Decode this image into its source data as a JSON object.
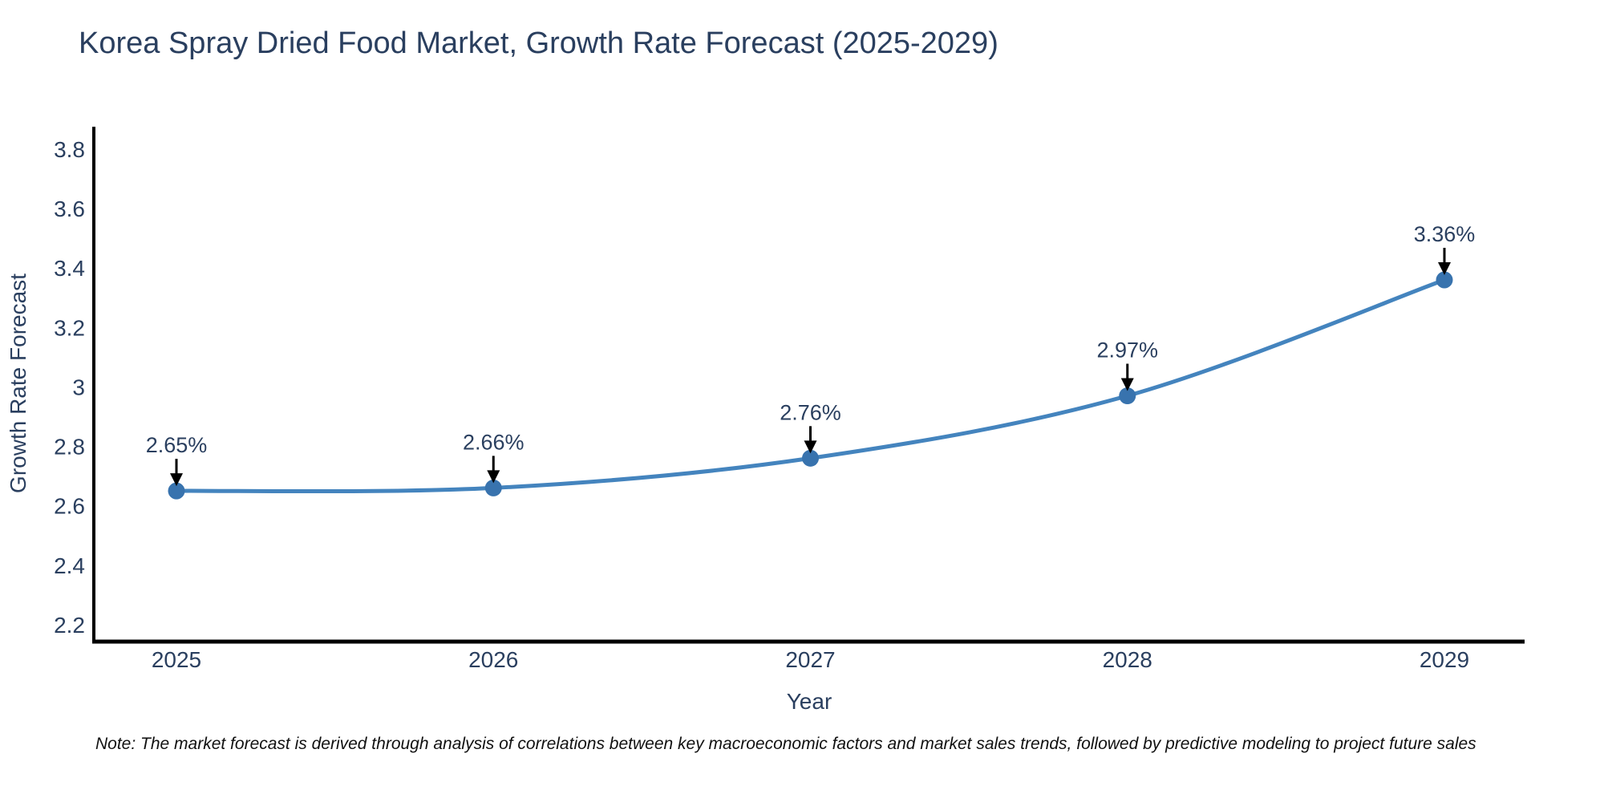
{
  "title": "Korea Spray Dried Food Market, Growth Rate Forecast (2025-2029)",
  "note": "Note: The market forecast is derived through analysis of correlations between key macroeconomic factors and market sales trends, followed by predictive modeling to project future sales",
  "chart_data": {
    "type": "line",
    "title": "Korea Spray Dried Food Market, Growth Rate Forecast (2025-2029)",
    "xlabel": "Year",
    "ylabel": "Growth Rate Forecast",
    "categories": [
      "2025",
      "2026",
      "2027",
      "2028",
      "2029"
    ],
    "series": [
      {
        "name": "Growth Rate Forecast",
        "values": [
          2.65,
          2.66,
          2.76,
          2.97,
          3.36
        ]
      }
    ],
    "point_labels": [
      "2.65%",
      "2.66%",
      "2.76%",
      "2.97%",
      "3.36%"
    ],
    "yticks": [
      "2.2",
      "2.4",
      "2.6",
      "2.8",
      "3",
      "3.2",
      "3.4",
      "3.6",
      "3.8"
    ],
    "ylim": [
      2.143,
      3.87
    ],
    "grid": false,
    "legend": "none",
    "line_shape": "spline",
    "marker": "circle",
    "annotation_arrows": true,
    "colors": {
      "line": "#4484be",
      "marker": "#3873ae",
      "axis_line": "#000000",
      "text": "#2a3f5f",
      "arrow": "#000000",
      "background": "#ffffff"
    }
  }
}
